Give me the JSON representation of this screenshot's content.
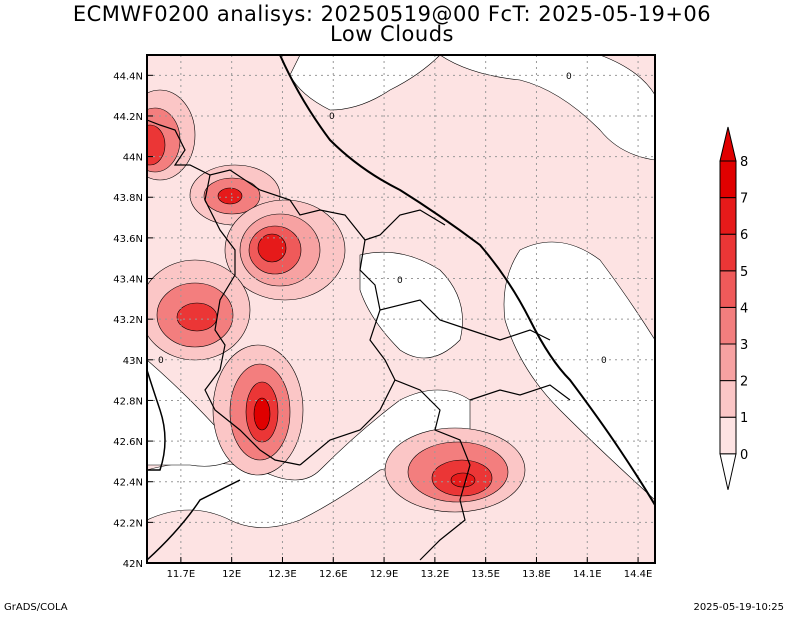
{
  "header": {
    "title_line1": "ECMWF0200 analisys: 20250519@00 FcT: 2025-05-19+06",
    "title_line2": "Low Clouds"
  },
  "footer": {
    "left": "GrADS/COLA",
    "right": "2025-05-19-10:25"
  },
  "map": {
    "lon_ticks": [
      "11.7E",
      "12E",
      "12.3E",
      "12.6E",
      "12.9E",
      "13.2E",
      "13.5E",
      "13.8E",
      "14.1E",
      "14.4E"
    ],
    "lat_ticks": [
      "44.4N",
      "44.2N",
      "44N",
      "43.8N",
      "43.6N",
      "43.4N",
      "43.2N",
      "43N",
      "42.8N",
      "42.6N",
      "42.4N",
      "42.2N",
      "42N"
    ],
    "contour_labels": [
      "0",
      "0",
      "0",
      "0",
      "0"
    ],
    "gridlines": true,
    "lon_range": [
      11.5,
      14.5
    ],
    "lat_range": [
      42.0,
      44.5
    ]
  },
  "colorbar": {
    "labels": [
      "0",
      "1",
      "2",
      "3",
      "4",
      "5",
      "6",
      "7",
      "8"
    ],
    "colors": [
      "#ffffff",
      "#fde3e3",
      "#fbc6c6",
      "#f7a2a2",
      "#f37e7e",
      "#ef5a5a",
      "#eb3636",
      "#e61a1a",
      "#e00000"
    ]
  }
}
